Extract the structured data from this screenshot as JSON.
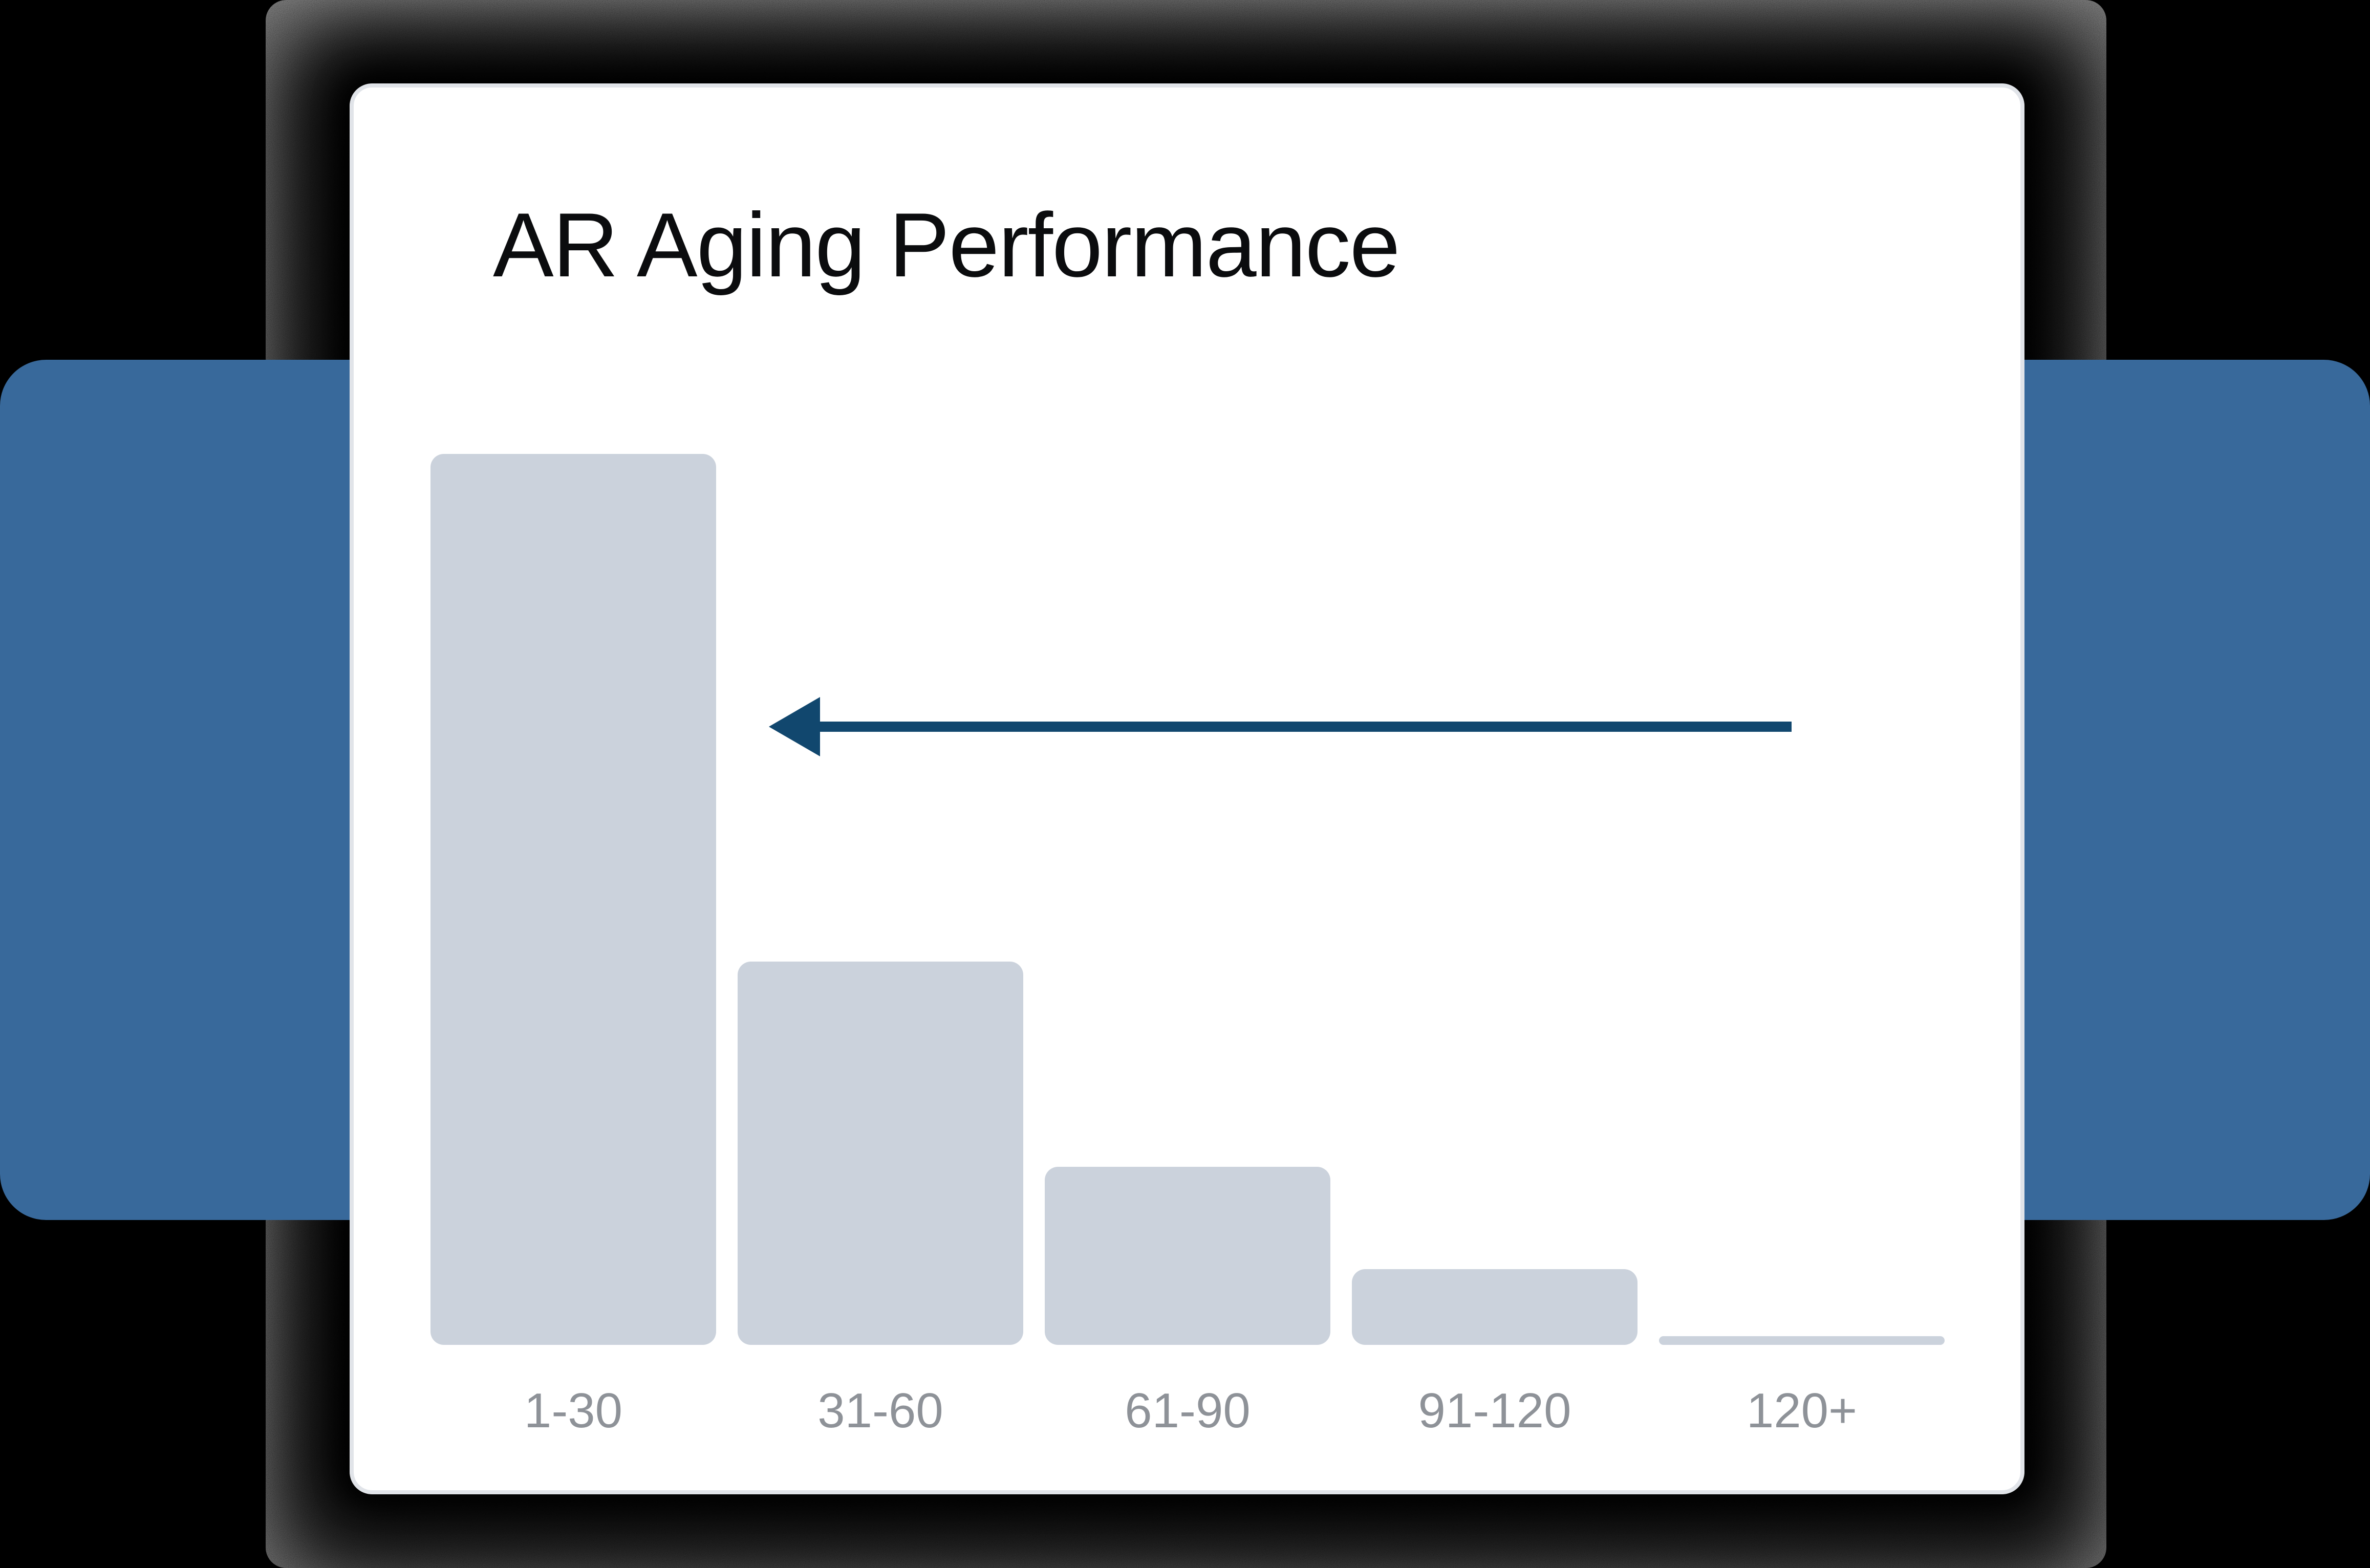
{
  "page": {
    "background": "#000000"
  },
  "backdrop": {
    "texture_base_color": "#9a9a9a",
    "blue_band_color": "#38699b",
    "card_shadow_color": "#000000"
  },
  "card": {
    "background": "#ffffff",
    "border_color": "#e1e4e9",
    "title_color": "#0b0c0e"
  },
  "chart_data": {
    "type": "bar",
    "title": "AR Aging Performance",
    "categories": [
      "1-30",
      "31-60",
      "61-90",
      "91-120",
      "120+"
    ],
    "values": [
      100,
      43,
      20,
      8.5,
      1
    ],
    "values_note": "relative bar heights as % of tallest bar; chart displays no y-axis or value labels",
    "xlabel": "",
    "ylabel": "",
    "ylim": [
      0,
      100
    ],
    "grid": false,
    "legend": false,
    "bar_color": "#cbd2dc",
    "tick_label_color": "#8e9298",
    "annotation": {
      "kind": "arrow",
      "direction": "left",
      "color": "#11476e"
    }
  }
}
